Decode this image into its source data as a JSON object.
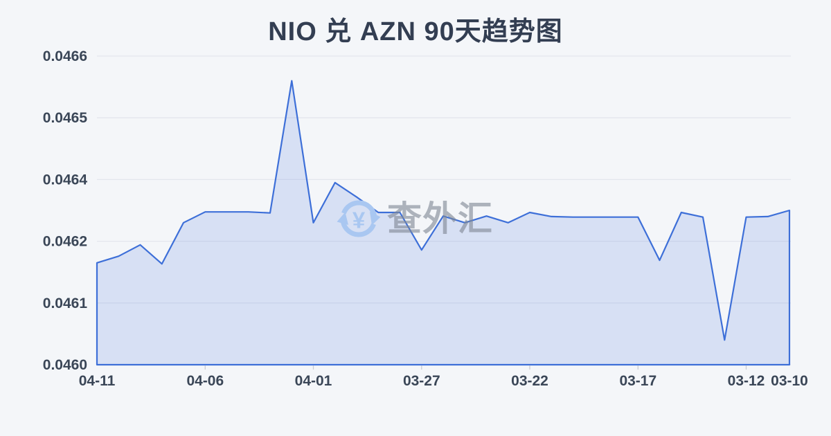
{
  "page": {
    "background": "#f4f6f9"
  },
  "watermark": {
    "icon": "currency-exchange-icon",
    "symbol": "¥",
    "text": "查外汇",
    "icon_color": "#a9c7f1",
    "text_color": "rgba(128,136,148,0.62)"
  },
  "chart_data": {
    "type": "area",
    "title": "NIO 兑 AZN 90天趋势图",
    "xlabel": "",
    "ylabel": "",
    "legend_position": "none",
    "grid": true,
    "x": [
      "04-11",
      "04-10",
      "04-09",
      "04-08",
      "04-07",
      "04-06",
      "04-05",
      "04-04",
      "04-03",
      "04-02",
      "04-01",
      "03-31",
      "03-30",
      "03-29",
      "03-28",
      "03-27",
      "03-26",
      "03-25",
      "03-24",
      "03-23",
      "03-22",
      "03-21",
      "03-20",
      "03-19",
      "03-18",
      "03-17",
      "03-16",
      "03-15",
      "03-14",
      "03-13",
      "03-12",
      "03-11",
      "03-10"
    ],
    "values": [
      0.046198,
      0.046211,
      0.046233,
      0.046196,
      0.046276,
      0.046297,
      0.046297,
      0.046297,
      0.046295,
      0.046552,
      0.046276,
      0.046354,
      0.046326,
      0.046296,
      0.046296,
      0.046223,
      0.046289,
      0.046276,
      0.046289,
      0.046276,
      0.046296,
      0.046288,
      0.046287,
      0.046287,
      0.046287,
      0.046287,
      0.046203,
      0.046296,
      0.046287,
      0.046048,
      0.046287,
      0.046288,
      0.0463
    ],
    "ylim": [
      0.046,
      0.0466
    ],
    "y_ticks": {
      "values": [
        0.0466,
        0.04648,
        0.04636,
        0.04624,
        0.04612,
        0.046
      ],
      "labels": [
        "0.0466",
        "0.0465",
        "0.0464",
        "0.0462",
        "0.0461",
        "0.0460"
      ]
    },
    "x_ticks": {
      "indices": [
        0,
        5,
        10,
        15,
        20,
        25,
        30,
        32
      ],
      "labels": [
        "04-11",
        "04-06",
        "04-01",
        "03-27",
        "03-22",
        "03-17",
        "03-12",
        "03-10"
      ]
    },
    "colors": {
      "line": "#3d6fd8",
      "fill": "rgba(68,114,217,0.16)",
      "grid_line": "#e3e6ed",
      "tick_mark": "#c9ccd4",
      "axis_text": "#3a4657",
      "title_text": "#333e52",
      "background": "#f4f6f9"
    }
  }
}
